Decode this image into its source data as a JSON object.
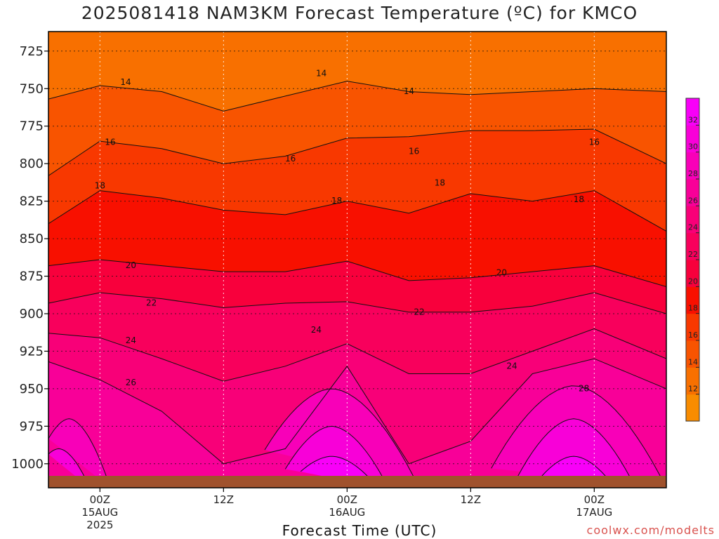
{
  "title": "2025081418 NAM3KM Forecast Temperature (ºC) for KMCO",
  "watermark": "coolwx.com/modelts",
  "chart_data": {
    "type": "heatmap",
    "title": "2025081418 NAM3KM Forecast Temperature (ºC) for KMCO",
    "xlabel": "Forecast Time (UTC)",
    "ylabel": "",
    "y_ticks": [
      725,
      750,
      775,
      800,
      825,
      850,
      875,
      900,
      925,
      950,
      975,
      1000
    ],
    "ylim": [
      712,
      1016
    ],
    "y_reversed": true,
    "x_range_hours": [
      -5,
      55
    ],
    "x_ticks": [
      {
        "hour": 0,
        "lines": [
          "00Z",
          "15AUG",
          "2025"
        ]
      },
      {
        "hour": 12,
        "lines": [
          "12Z"
        ]
      },
      {
        "hour": 24,
        "lines": [
          "00Z",
          "16AUG"
        ]
      },
      {
        "hour": 36,
        "lines": [
          "12Z"
        ]
      },
      {
        "hour": 48,
        "lines": [
          "00Z",
          "17AUG"
        ]
      }
    ],
    "grid": true,
    "colorbar": {
      "levels": [
        10,
        12,
        14,
        16,
        18,
        20,
        22,
        24,
        26,
        28,
        30,
        32,
        34
      ],
      "labels": [
        12,
        14,
        16,
        18,
        20,
        22,
        24,
        26,
        28,
        30,
        32
      ],
      "colors": [
        "#f88c00",
        "#f87000",
        "#f85400",
        "#f83800",
        "#f81000",
        "#f8003c",
        "#f8005c",
        "#f80078",
        "#f80098",
        "#f800b8",
        "#f800d8",
        "#f800f8"
      ]
    },
    "surface_color": "#a0522d",
    "sample_times": [
      -5,
      0,
      6,
      12,
      18,
      24,
      30,
      36,
      42,
      48,
      55
    ],
    "isotherm_pressure": [
      {
        "temp": 14,
        "values": [
          757,
          748,
          752,
          765,
          755,
          745,
          752,
          754,
          752,
          750,
          752
        ]
      },
      {
        "temp": 16,
        "values": [
          808,
          785,
          790,
          800,
          795,
          783,
          782,
          778,
          778,
          777,
          800
        ]
      },
      {
        "temp": 18,
        "values": [
          840,
          818,
          823,
          831,
          834,
          825,
          833,
          820,
          825,
          818,
          845
        ]
      },
      {
        "temp": 20,
        "values": [
          868,
          864,
          868,
          872,
          872,
          865,
          878,
          876,
          872,
          868,
          882
        ]
      },
      {
        "temp": 22,
        "values": [
          893,
          886,
          890,
          896,
          893,
          892,
          899,
          899,
          895,
          886,
          900
        ]
      },
      {
        "temp": 24,
        "values": [
          913,
          916,
          930,
          945,
          935,
          920,
          940,
          940,
          925,
          910,
          930
        ]
      },
      {
        "temp": 26,
        "values": [
          932,
          944,
          965,
          1000,
          990,
          935,
          1000,
          985,
          940,
          930,
          950
        ]
      }
    ],
    "warm_domes": [
      {
        "temp": 28,
        "start": 16,
        "end": 31,
        "peak_hour": 22.5,
        "peak_pressure": 950
      },
      {
        "temp": 30,
        "start": 18,
        "end": 28,
        "peak_hour": 22.5,
        "peak_pressure": 975
      },
      {
        "temp": 32,
        "start": 19.5,
        "end": 27,
        "peak_hour": 22.5,
        "peak_pressure": 995
      },
      {
        "temp": 28,
        "start": 38,
        "end": 55,
        "peak_hour": 46,
        "peak_pressure": 948
      },
      {
        "temp": 30,
        "start": 40,
        "end": 52,
        "peak_hour": 46,
        "peak_pressure": 970
      },
      {
        "temp": 32,
        "start": 42,
        "end": 50,
        "peak_hour": 46,
        "peak_pressure": 995
      },
      {
        "temp": 28,
        "start": -5,
        "end": 1,
        "peak_hour": -3,
        "peak_pressure": 970
      },
      {
        "temp": 30,
        "start": -5,
        "end": -1,
        "peak_hour": -4,
        "peak_pressure": 990
      }
    ],
    "contour_labels": [
      {
        "text": "14",
        "hour": 2.5,
        "pressure": 746
      },
      {
        "text": "14",
        "hour": 21.5,
        "pressure": 740
      },
      {
        "text": "14",
        "hour": 30,
        "pressure": 752
      },
      {
        "text": "16",
        "hour": 1,
        "pressure": 786
      },
      {
        "text": "16",
        "hour": 18.5,
        "pressure": 797
      },
      {
        "text": "16",
        "hour": 30.5,
        "pressure": 792
      },
      {
        "text": "16",
        "hour": 48,
        "pressure": 786
      },
      {
        "text": "18",
        "hour": 0,
        "pressure": 815
      },
      {
        "text": "18",
        "hour": 23,
        "pressure": 825
      },
      {
        "text": "18",
        "hour": 33,
        "pressure": 813
      },
      {
        "text": "18",
        "hour": 46.5,
        "pressure": 824
      },
      {
        "text": "20",
        "hour": 3,
        "pressure": 868
      },
      {
        "text": "20",
        "hour": 39,
        "pressure": 873
      },
      {
        "text": "22",
        "hour": 5,
        "pressure": 893
      },
      {
        "text": "22",
        "hour": 31,
        "pressure": 899
      },
      {
        "text": "24",
        "hour": 3,
        "pressure": 918
      },
      {
        "text": "24",
        "hour": 21,
        "pressure": 911
      },
      {
        "text": "24",
        "hour": 40,
        "pressure": 935
      },
      {
        "text": "26",
        "hour": 3,
        "pressure": 946
      },
      {
        "text": "28",
        "hour": 47,
        "pressure": 950
      }
    ]
  }
}
